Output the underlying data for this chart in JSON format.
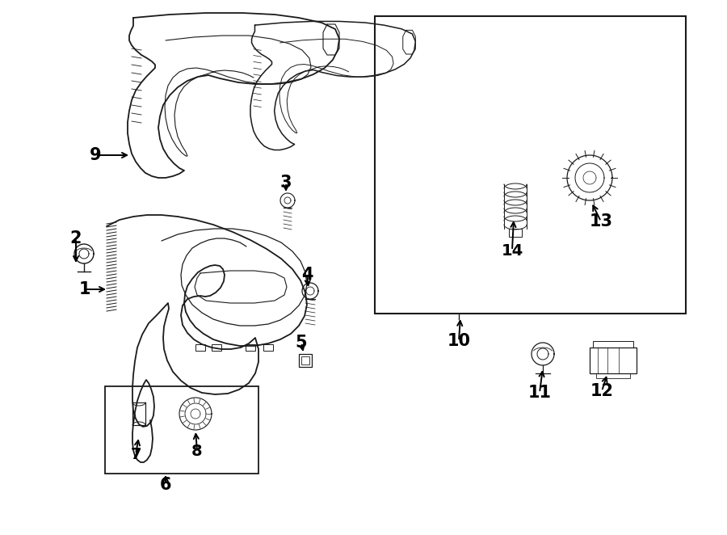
{
  "bg_color": "#ffffff",
  "line_color": "#1a1a1a",
  "label_color": "#000000",
  "fig_width": 9.0,
  "fig_height": 6.62,
  "dpi": 100
}
